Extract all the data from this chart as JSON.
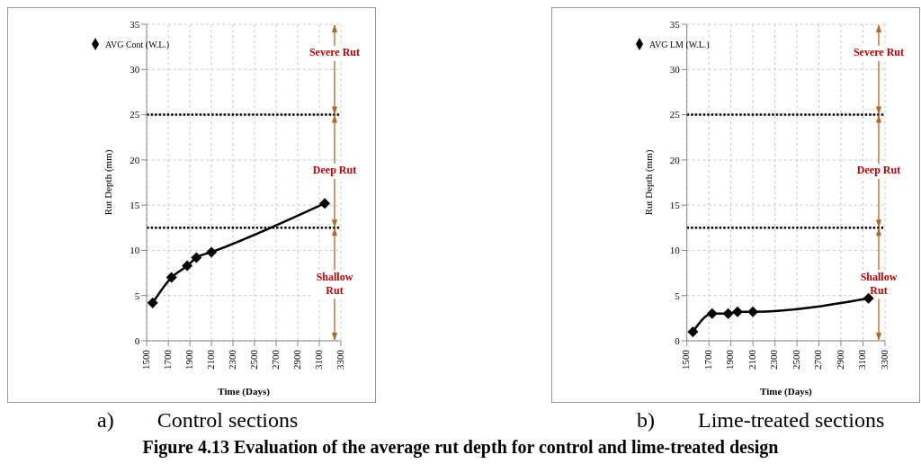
{
  "chart_data": [
    {
      "type": "line",
      "title": "a)        Control sections",
      "xlabel": "Time (Days)",
      "ylabel": "Rut Depth (mm)",
      "x": [
        1555,
        1730,
        1875,
        1960,
        2100,
        3150
      ],
      "series": [
        {
          "name": "AVG  Cont  (W.L.)",
          "color": "#000000",
          "values": [
            4.2,
            7.0,
            8.3,
            9.2,
            9.8,
            15.2
          ]
        }
      ],
      "xlim": [
        1500,
        3300
      ],
      "xticks": [
        1500,
        1700,
        1900,
        2100,
        2300,
        2500,
        2700,
        2900,
        3100,
        3300
      ],
      "ylim": [
        0,
        35
      ],
      "yticks": [
        0,
        5,
        10,
        15,
        20,
        25,
        30,
        35
      ],
      "grid": true,
      "legend": "top left",
      "marker": "diamond",
      "line_style": "solid",
      "ref_lines": [
        {
          "axis": "y",
          "value": 25,
          "color": "#000000",
          "line_style": "dotted"
        },
        {
          "axis": "y",
          "value": 12.5,
          "color": "#000000",
          "line_style": "dotted"
        }
      ],
      "annotations": [
        "Severe Rut",
        "Deep Rut",
        "Shallow\nRut",
        "Figure 4.13 Evaluation of the average rut depth for control and lime-treated design"
      ]
    },
    {
      "type": "line",
      "title": "b)        Lime-treated sections",
      "xlabel": "Time (Days)",
      "ylabel": "Rut Depth (mm)",
      "x": [
        1555,
        1730,
        1875,
        1960,
        2100,
        3150
      ],
      "series": [
        {
          "name": "AVG  LM  (W.L.)",
          "color": "#000000",
          "values": [
            1.0,
            3.0,
            3.0,
            3.2,
            3.2,
            4.7
          ]
        }
      ],
      "xlim": [
        1500,
        3300
      ],
      "xticks": [
        1500,
        1700,
        1900,
        2100,
        2300,
        2500,
        2700,
        2900,
        3100,
        3300
      ],
      "ylim": [
        0,
        35
      ],
      "yticks": [
        0,
        5,
        10,
        15,
        20,
        25,
        30,
        35
      ],
      "grid": true,
      "legend": "top left",
      "marker": "diamond",
      "line_style": "solid",
      "ref_lines": [
        {
          "axis": "y",
          "value": 25,
          "color": "#000000",
          "line_style": "dotted"
        },
        {
          "axis": "y",
          "value": 12.5,
          "color": "#000000",
          "line_style": "dotted"
        }
      ],
      "annotations": [
        "Severe Rut",
        "Deep Rut",
        "Shallow\nRut"
      ]
    }
  ]
}
